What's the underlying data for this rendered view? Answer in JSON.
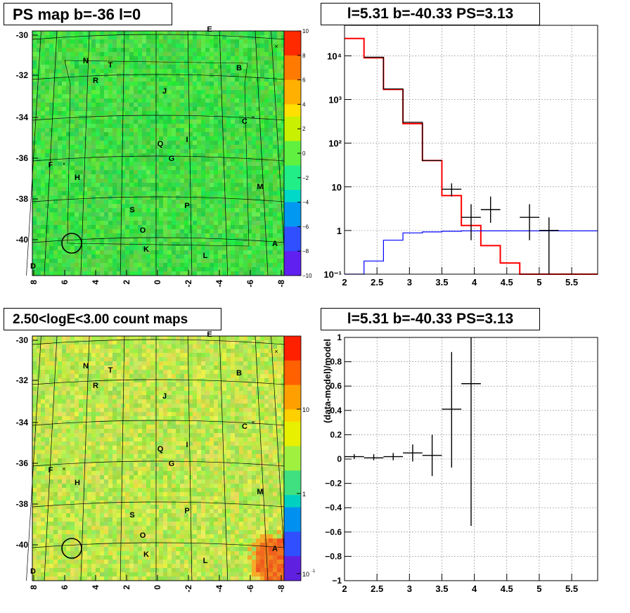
{
  "panels": {
    "ps_map": {
      "title": "PS map b=-36 l=0",
      "y_ticks": [
        "-30",
        "-32",
        "-34",
        "-36",
        "-38",
        "-40"
      ],
      "x_ticks": [
        "8",
        "6",
        "4",
        "2",
        "0",
        "-2",
        "-4",
        "-6",
        "-8"
      ],
      "colorbar_ticks": [
        "10",
        "8",
        "6",
        "4",
        "2",
        "0",
        "−2",
        "−4",
        "−6",
        "−8",
        "−10"
      ],
      "sources": [
        "E",
        "N",
        "T",
        "B",
        "R",
        "J",
        "C",
        "Q",
        "I",
        "G",
        "F",
        "H",
        "M",
        "P",
        "S",
        "O",
        "K",
        "L",
        "A",
        "D"
      ]
    },
    "count_map": {
      "title": "2.50<logE<3.00 count maps",
      "y_ticks": [
        "-30",
        "-32",
        "-34",
        "-36",
        "-38",
        "-40"
      ],
      "x_ticks": [
        "8",
        "6",
        "4",
        "2",
        "0",
        "-2",
        "-4",
        "-6",
        "-8"
      ],
      "colorbar_ticks": [
        "10",
        "1",
        "10"
      ],
      "colorbar_exp": "-1",
      "sources": [
        "E",
        "N",
        "T",
        "B",
        "R",
        "J",
        "C",
        "Q",
        "I",
        "G",
        "F",
        "H",
        "M",
        "P",
        "S",
        "O",
        "K",
        "L",
        "A",
        "D"
      ]
    },
    "spectrum": {
      "title": "l=5.31 b=-40.33 PS=3.13"
    },
    "residual": {
      "title": "l=5.31 b=-40.33 PS=3.13"
    }
  },
  "colors": {
    "data": "#000000",
    "total_model": "#ff0000",
    "source_model": "#0000ff",
    "map_background": "#33dd44",
    "count_background": "#9ee05a"
  },
  "chart_data": [
    {
      "type": "heatmap",
      "title": "PS map b=-36 l=0",
      "xlim": [
        8,
        -8
      ],
      "ylim": [
        -41.5,
        -29.8
      ],
      "zlim": [
        -10,
        10
      ]
    },
    {
      "type": "line",
      "title": "l=5.31 b=-40.33 PS=3.13",
      "yscale": "log",
      "xlim": [
        2,
        5.9
      ],
      "ylim": [
        0.1,
        50000
      ],
      "x_ticks": [
        "2",
        "2.5",
        "3",
        "3.5",
        "4",
        "4.5",
        "5",
        "5.5"
      ],
      "y_ticks": [
        "10⁻¹",
        "1",
        "10",
        "10²",
        "10³",
        "10⁴"
      ],
      "grid": true,
      "series": [
        {
          "style": "step",
          "color": "#ff0000",
          "edges": [
            2.0,
            2.3,
            2.6,
            2.9,
            3.2,
            3.5,
            3.8,
            4.1,
            4.4,
            4.7,
            5.0,
            5.9
          ],
          "values": [
            25000,
            9000,
            1700,
            280,
            40,
            6.3,
            1.3,
            0.45,
            0.18,
            0.1,
            0.1
          ]
        },
        {
          "style": "step",
          "color": "#000000",
          "edges": [
            2.3,
            2.6,
            2.9,
            3.2,
            3.5
          ],
          "values": [
            9300,
            1750,
            300,
            40
          ]
        },
        {
          "style": "step",
          "color": "#0000ff",
          "edges": [
            2.0,
            2.3,
            2.6,
            2.9,
            3.2,
            3.5,
            3.8,
            5.9
          ],
          "values": [
            0.08,
            0.2,
            0.6,
            0.88,
            0.93,
            0.96,
            0.98
          ]
        },
        {
          "style": "errorbar",
          "color": "#000000",
          "x": [
            3.65,
            3.95,
            4.25,
            4.85,
            5.15
          ],
          "x_err": [
            0.15,
            0.15,
            0.15,
            0.15,
            0.15
          ],
          "y": [
            8.8,
            2.0,
            3.0,
            2.0,
            1.0
          ],
          "y_low": [
            6.0,
            0.6,
            1.5,
            0.6,
            0.1
          ],
          "y_high": [
            12,
            4.0,
            6.0,
            4.0,
            2.0
          ]
        }
      ]
    },
    {
      "type": "scatter",
      "title": "l=5.31 b=-40.33 PS=3.13",
      "ylabel": "(data-model)/model",
      "xlim": [
        2,
        5.9
      ],
      "ylim": [
        -1,
        1
      ],
      "x_ticks": [
        "2",
        "2.5",
        "3",
        "3.5",
        "4",
        "4.5",
        "5",
        "5.5"
      ],
      "y_ticks": [
        "−1",
        "−0.8",
        "−0.6",
        "−0.4",
        "−0.2",
        "0",
        "0.2",
        "0.4",
        "0.6",
        "0.8",
        "1"
      ],
      "grid": true,
      "points": {
        "x": [
          2.15,
          2.45,
          2.75,
          3.05,
          3.35,
          3.65,
          3.95
        ],
        "x_err": [
          0.15,
          0.15,
          0.15,
          0.15,
          0.15,
          0.15,
          0.15
        ],
        "y": [
          0.02,
          0.01,
          0.02,
          0.05,
          0.03,
          0.41,
          0.62
        ],
        "y_low": [
          0.0,
          -0.01,
          -0.01,
          -0.02,
          -0.14,
          -0.07,
          -0.55
        ],
        "y_high": [
          0.04,
          0.04,
          0.05,
          0.12,
          0.2,
          0.88,
          1.0
        ]
      }
    }
  ]
}
